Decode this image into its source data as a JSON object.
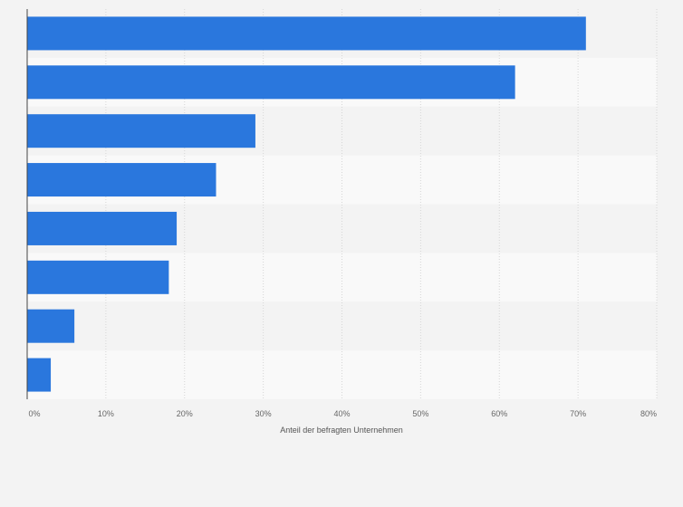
{
  "chart_data": {
    "type": "bar",
    "orientation": "horizontal",
    "categories": [
      "",
      "",
      "",
      "",
      "",
      "",
      "",
      ""
    ],
    "values": [
      71,
      62,
      29,
      24,
      19,
      18,
      6,
      3
    ],
    "value_unit": "%",
    "title": "",
    "xlabel": "Anteil der befragten Unternehmen",
    "ylabel": "",
    "xlim": [
      0,
      80
    ],
    "x_ticks": [
      "0%",
      "10%",
      "20%",
      "30%",
      "40%",
      "50%",
      "60%",
      "70%",
      "80%"
    ],
    "grid": true,
    "legend": "none",
    "bar_color": "#2a77dd",
    "band_colors": [
      "#f3f3f3",
      "#f9f9f9"
    ]
  }
}
